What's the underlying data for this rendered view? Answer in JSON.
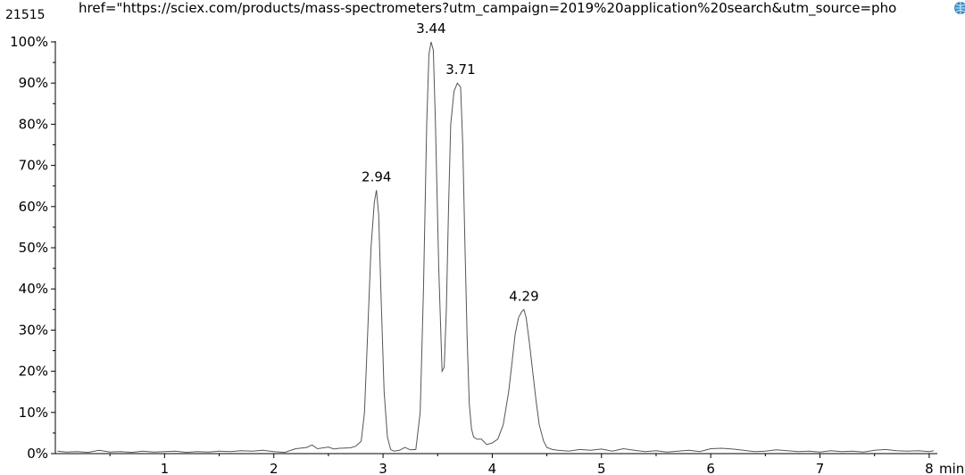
{
  "header": {
    "overflow_text": "href=\"https://sciex.com/products/mass-spectrometers?utm_campaign=2019%20application%20search&utm_source=pho",
    "max_count": "21515",
    "corner_icon": "globe-icon"
  },
  "chart_data": {
    "type": "line",
    "xlabel": "min",
    "ylabel": "",
    "x_unit": "min",
    "xlim": [
      0,
      8.05
    ],
    "ylim": [
      0,
      100
    ],
    "x_ticks": [
      1,
      2,
      3,
      4,
      5,
      6,
      7,
      8
    ],
    "x_tick_labels": [
      "1",
      "2",
      "3",
      "4",
      "5",
      "6",
      "7",
      "8"
    ],
    "y_ticks": [
      0,
      10,
      20,
      30,
      40,
      50,
      60,
      70,
      80,
      90,
      100
    ],
    "y_tick_labels": [
      "0%",
      "10%",
      "20%",
      "30%",
      "40%",
      "50%",
      "60%",
      "70%",
      "80%",
      "90%",
      "100%"
    ],
    "grid": false,
    "line_color": "#555555",
    "peak_labels": [
      {
        "x": 2.94,
        "y": 64,
        "text": "2.94"
      },
      {
        "x": 3.44,
        "y": 100,
        "text": "3.44"
      },
      {
        "x": 3.71,
        "y": 90,
        "text": "3.71"
      },
      {
        "x": 4.29,
        "y": 35,
        "text": "4.29"
      }
    ],
    "series": [
      {
        "x": [
          0.02,
          0.1,
          0.2,
          0.3,
          0.4,
          0.5,
          0.6,
          0.7,
          0.8,
          0.9,
          1.0,
          1.1,
          1.2,
          1.3,
          1.4,
          1.5,
          1.6,
          1.7,
          1.8,
          1.9,
          2.0,
          2.1,
          2.2,
          2.3,
          2.35,
          2.4,
          2.5,
          2.55,
          2.6,
          2.7,
          2.75,
          2.8,
          2.83,
          2.86,
          2.89,
          2.92,
          2.94,
          2.96,
          2.98,
          3.01,
          3.04,
          3.07,
          3.1,
          3.15,
          3.2,
          3.25,
          3.3,
          3.34,
          3.37,
          3.4,
          3.42,
          3.44,
          3.46,
          3.48,
          3.51,
          3.54,
          3.56,
          3.58,
          3.6,
          3.62,
          3.65,
          3.68,
          3.71,
          3.73,
          3.75,
          3.77,
          3.79,
          3.81,
          3.83,
          3.86,
          3.9,
          3.95,
          4.0,
          4.05,
          4.1,
          4.15,
          4.18,
          4.21,
          4.24,
          4.27,
          4.29,
          4.31,
          4.34,
          4.37,
          4.4,
          4.43,
          4.47,
          4.5,
          4.55,
          4.6,
          4.7,
          4.8,
          4.9,
          5.0,
          5.1,
          5.2,
          5.3,
          5.4,
          5.5,
          5.6,
          5.7,
          5.8,
          5.9,
          6.0,
          6.1,
          6.2,
          6.3,
          6.4,
          6.5,
          6.6,
          6.7,
          6.8,
          6.9,
          7.0,
          7.1,
          7.2,
          7.3,
          7.4,
          7.5,
          7.6,
          7.7,
          7.8,
          7.9,
          8.0,
          8.04
        ],
        "y": [
          0.6,
          0.4,
          0.5,
          0.3,
          0.8,
          0.4,
          0.5,
          0.3,
          0.6,
          0.4,
          0.5,
          0.6,
          0.3,
          0.5,
          0.4,
          0.6,
          0.5,
          0.7,
          0.6,
          0.8,
          0.5,
          0.3,
          1.2,
          1.5,
          2.1,
          1.2,
          1.6,
          1.1,
          1.3,
          1.4,
          1.8,
          3.0,
          10.0,
          30.0,
          50.0,
          61.0,
          64.0,
          58.0,
          40.0,
          15.0,
          4.0,
          1.0,
          0.6,
          0.8,
          1.5,
          0.9,
          1.0,
          10.0,
          40.0,
          80.0,
          97.0,
          100.0,
          98.0,
          80.0,
          45.0,
          20.0,
          21.0,
          35.0,
          60.0,
          80.0,
          88.0,
          90.0,
          89.0,
          75.0,
          50.0,
          28.0,
          12.0,
          6.0,
          4.0,
          3.5,
          3.5,
          2.2,
          2.6,
          3.5,
          7.0,
          15.0,
          22.0,
          29.0,
          33.0,
          34.5,
          35.0,
          33.0,
          27.0,
          20.0,
          13.0,
          7.0,
          3.0,
          1.5,
          1.0,
          0.8,
          0.6,
          1.0,
          0.8,
          1.1,
          0.6,
          1.2,
          0.8,
          0.5,
          0.7,
          0.4,
          0.6,
          0.8,
          0.5,
          1.2,
          1.3,
          1.1,
          0.8,
          0.5,
          0.6,
          0.9,
          0.7,
          0.5,
          0.6,
          0.4,
          0.7,
          0.5,
          0.6,
          0.4,
          0.8,
          1.0,
          0.7,
          0.6,
          0.7,
          0.5,
          0.7
        ]
      }
    ]
  }
}
